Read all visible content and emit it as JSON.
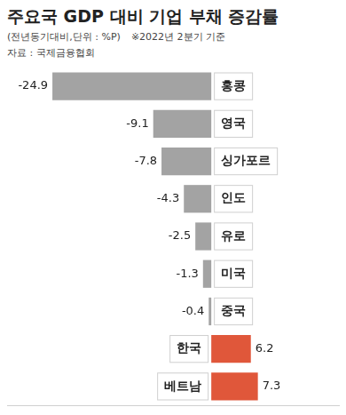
{
  "chart_data": {
    "type": "bar",
    "title": "주요국 GDP 대비 기업 부채 증감률",
    "subtitle": "(전년동기대비,단위 : %P)",
    "note": "※2022년 2분기 기준",
    "source": "자료 : 국제금융협회",
    "categories": [
      "홍콩",
      "영국",
      "싱가포르",
      "인도",
      "유로",
      "미국",
      "중국",
      "한국",
      "베트남"
    ],
    "values": [
      -24.9,
      -9.1,
      -7.8,
      -4.3,
      -2.5,
      -1.3,
      -0.4,
      6.2,
      7.3
    ],
    "colors": [
      "#a3a3a3",
      "#a3a3a3",
      "#a3a3a3",
      "#a3a3a3",
      "#a3a3a3",
      "#a3a3a3",
      "#a3a3a3",
      "#e0573a",
      "#e0573a"
    ],
    "orientation": "horizontal",
    "xlim": [
      -32,
      20
    ],
    "grid": false,
    "data_labels": true,
    "tick_labels": false
  }
}
